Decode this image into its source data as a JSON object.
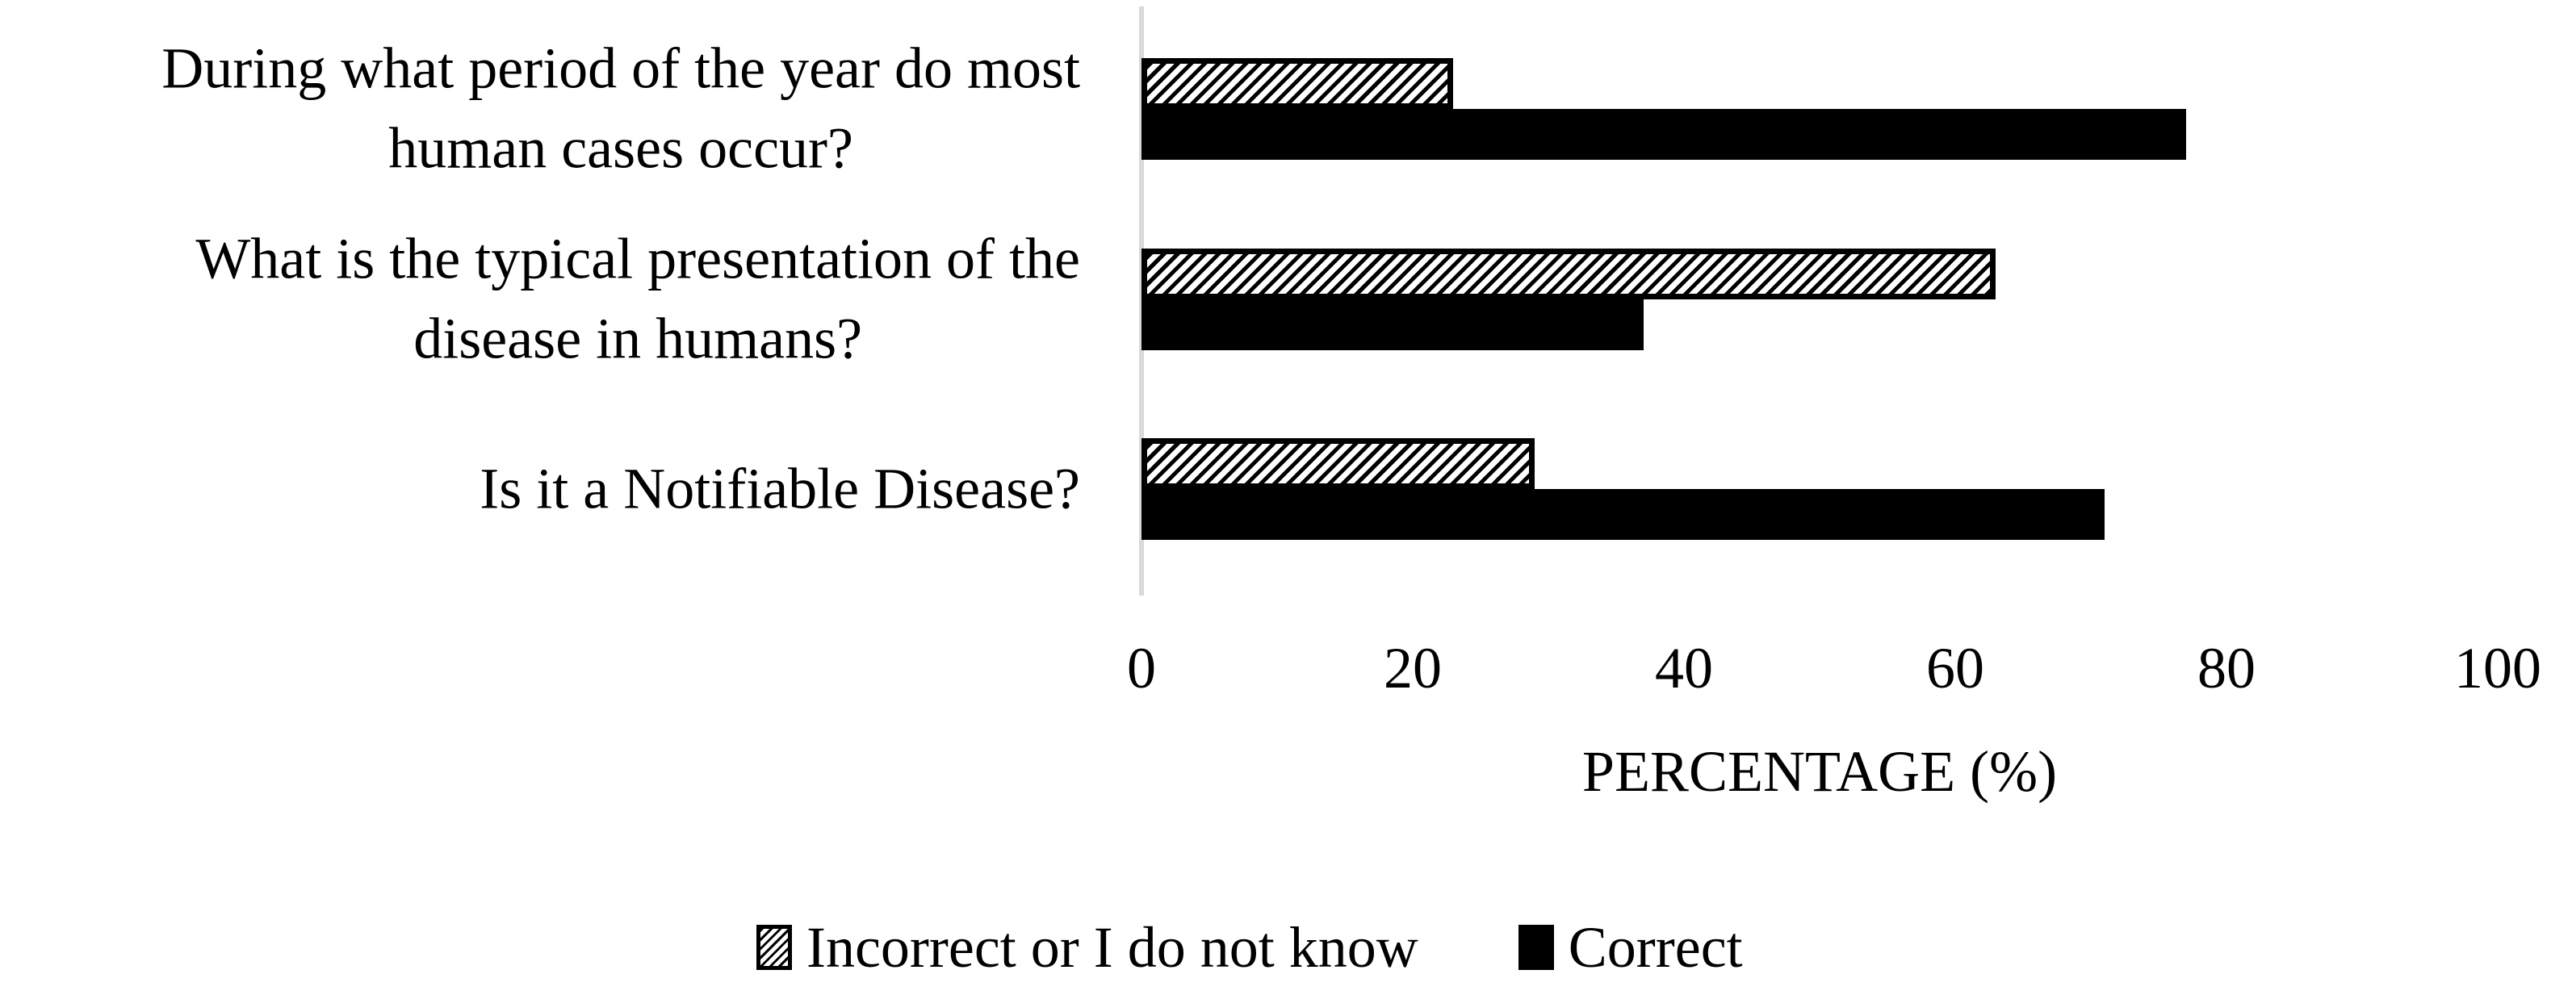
{
  "chart_data": {
    "type": "bar",
    "orientation": "horizontal",
    "categories": [
      "During what period of the year do most human cases occur?",
      "What is the typical presentation of the disease in humans?",
      "Is it a Notifiable Disease?"
    ],
    "category_lines": [
      [
        "During what period of the year do most",
        "human cases occur?"
      ],
      [
        "What is the typical presentation of the",
        "disease in humans?"
      ],
      [
        "Is it a Notifiable Disease?"
      ]
    ],
    "series": [
      {
        "name": "Incorrect or I do not know",
        "pattern": "diagonal-hatch",
        "values": [
          23,
          63,
          29
        ]
      },
      {
        "name": "Correct",
        "pattern": "solid",
        "values": [
          77,
          37,
          71
        ]
      }
    ],
    "xlabel": "PERCENTAGE (%)",
    "xlim": [
      0,
      100
    ],
    "xticks": [
      "0",
      "20",
      "40",
      "60",
      "80",
      "100"
    ],
    "grid": "off",
    "legend_position": "bottom",
    "colors": {
      "bar_fill": "#000000",
      "text": "#000000",
      "axis_line": "#d9d9d9",
      "background": "#ffffff"
    }
  }
}
